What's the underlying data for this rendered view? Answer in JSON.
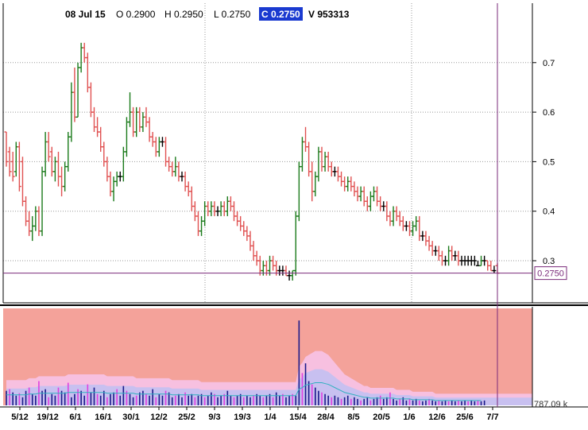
{
  "header": {
    "date": "08 Jul 15",
    "open": "O 0.2900",
    "high": "H 0.2950",
    "low": "L 0.2750",
    "close": "C 0.2750",
    "volume": "V 953313"
  },
  "price_tag": "0.2750",
  "volume_tag": "787.09 k",
  "colors": {
    "up": "#1a7a1a",
    "down": "#e05050",
    "doji": "#000000",
    "crosshair": "#7a2a7a",
    "volume_bg": "#f4a29a",
    "volume_band_outer": "#f7c0e0",
    "volume_band_inner": "#c8c0f0",
    "volume_bar_dark": "#1a1a8a",
    "volume_bar_light": "#e040e0",
    "volume_avg": "#30b0c0",
    "close_tag_bg": "#1a3ad0"
  },
  "chart_data": {
    "type": "ohlc",
    "price_axis": {
      "ticks": [
        "0.3",
        "0.4",
        "0.5",
        "0.6",
        "0.7"
      ],
      "ylim": [
        0.215,
        0.82
      ]
    },
    "date_labels": [
      "5/12",
      "19/12",
      "6/1",
      "16/1",
      "30/1",
      "12/2",
      "25/2",
      "9/3",
      "19/3",
      "1/4",
      "15/4",
      "28/4",
      "8/5",
      "20/5",
      "1/6",
      "12/6",
      "25/6",
      "7/7"
    ],
    "last_close": 0.275,
    "grid": "dotted",
    "bars": [
      [
        0.56,
        0.56,
        0.49,
        0.5
      ],
      [
        0.52,
        0.53,
        0.47,
        0.48
      ],
      [
        0.5,
        0.52,
        0.46,
        0.47
      ],
      [
        0.48,
        0.54,
        0.47,
        0.53
      ],
      [
        0.53,
        0.54,
        0.44,
        0.45
      ],
      [
        0.5,
        0.51,
        0.41,
        0.42
      ],
      [
        0.42,
        0.43,
        0.37,
        0.38
      ],
      [
        0.38,
        0.4,
        0.35,
        0.36
      ],
      [
        0.36,
        0.39,
        0.34,
        0.37
      ],
      [
        0.37,
        0.41,
        0.36,
        0.4
      ],
      [
        0.4,
        0.41,
        0.35,
        0.36
      ],
      [
        0.36,
        0.49,
        0.35,
        0.48
      ],
      [
        0.48,
        0.56,
        0.47,
        0.54
      ],
      [
        0.54,
        0.56,
        0.5,
        0.51
      ],
      [
        0.52,
        0.53,
        0.47,
        0.48
      ],
      [
        0.48,
        0.51,
        0.46,
        0.5
      ],
      [
        0.5,
        0.52,
        0.45,
        0.47
      ],
      [
        0.47,
        0.49,
        0.43,
        0.45
      ],
      [
        0.45,
        0.5,
        0.44,
        0.49
      ],
      [
        0.49,
        0.56,
        0.48,
        0.55
      ],
      [
        0.55,
        0.66,
        0.54,
        0.64
      ],
      [
        0.64,
        0.69,
        0.58,
        0.59
      ],
      [
        0.59,
        0.7,
        0.59,
        0.69
      ],
      [
        0.69,
        0.74,
        0.68,
        0.73
      ],
      [
        0.73,
        0.74,
        0.7,
        0.71
      ],
      [
        0.71,
        0.72,
        0.64,
        0.65
      ],
      [
        0.65,
        0.66,
        0.59,
        0.6
      ],
      [
        0.6,
        0.61,
        0.56,
        0.57
      ],
      [
        0.57,
        0.59,
        0.55,
        0.56
      ],
      [
        0.56,
        0.57,
        0.52,
        0.53
      ],
      [
        0.53,
        0.54,
        0.49,
        0.5
      ],
      [
        0.5,
        0.51,
        0.46,
        0.47
      ],
      [
        0.47,
        0.48,
        0.43,
        0.44
      ],
      [
        0.44,
        0.47,
        0.42,
        0.46
      ],
      [
        0.46,
        0.48,
        0.45,
        0.47
      ],
      [
        0.47,
        0.48,
        0.46,
        0.47
      ],
      [
        0.47,
        0.53,
        0.46,
        0.52
      ],
      [
        0.52,
        0.59,
        0.51,
        0.58
      ],
      [
        0.58,
        0.64,
        0.57,
        0.6
      ],
      [
        0.6,
        0.61,
        0.55,
        0.56
      ],
      [
        0.56,
        0.61,
        0.55,
        0.6
      ],
      [
        0.6,
        0.61,
        0.56,
        0.57
      ],
      [
        0.57,
        0.6,
        0.56,
        0.59
      ],
      [
        0.59,
        0.61,
        0.57,
        0.58
      ],
      [
        0.58,
        0.59,
        0.54,
        0.55
      ],
      [
        0.55,
        0.56,
        0.53,
        0.54
      ],
      [
        0.54,
        0.55,
        0.51,
        0.52
      ],
      [
        0.52,
        0.55,
        0.51,
        0.54
      ],
      [
        0.54,
        0.55,
        0.53,
        0.54
      ],
      [
        0.54,
        0.55,
        0.49,
        0.5
      ],
      [
        0.5,
        0.51,
        0.48,
        0.49
      ],
      [
        0.49,
        0.5,
        0.47,
        0.48
      ],
      [
        0.48,
        0.51,
        0.47,
        0.49
      ],
      [
        0.49,
        0.5,
        0.46,
        0.47
      ],
      [
        0.47,
        0.48,
        0.46,
        0.47
      ],
      [
        0.47,
        0.48,
        0.44,
        0.45
      ],
      [
        0.45,
        0.46,
        0.43,
        0.44
      ],
      [
        0.44,
        0.45,
        0.4,
        0.41
      ],
      [
        0.41,
        0.42,
        0.38,
        0.39
      ],
      [
        0.39,
        0.4,
        0.35,
        0.36
      ],
      [
        0.36,
        0.39,
        0.35,
        0.38
      ],
      [
        0.38,
        0.42,
        0.37,
        0.41
      ],
      [
        0.41,
        0.42,
        0.39,
        0.4
      ],
      [
        0.4,
        0.42,
        0.39,
        0.41
      ],
      [
        0.41,
        0.42,
        0.39,
        0.4
      ],
      [
        0.4,
        0.41,
        0.39,
        0.4
      ],
      [
        0.4,
        0.42,
        0.39,
        0.41
      ],
      [
        0.41,
        0.42,
        0.39,
        0.4
      ],
      [
        0.4,
        0.43,
        0.39,
        0.42
      ],
      [
        0.42,
        0.43,
        0.4,
        0.41
      ],
      [
        0.41,
        0.42,
        0.38,
        0.39
      ],
      [
        0.39,
        0.4,
        0.37,
        0.38
      ],
      [
        0.38,
        0.39,
        0.36,
        0.37
      ],
      [
        0.37,
        0.38,
        0.35,
        0.36
      ],
      [
        0.36,
        0.37,
        0.34,
        0.35
      ],
      [
        0.35,
        0.36,
        0.32,
        0.33
      ],
      [
        0.33,
        0.34,
        0.3,
        0.31
      ],
      [
        0.31,
        0.32,
        0.29,
        0.3
      ],
      [
        0.3,
        0.31,
        0.27,
        0.28
      ],
      [
        0.28,
        0.3,
        0.27,
        0.29
      ],
      [
        0.29,
        0.3,
        0.27,
        0.28
      ],
      [
        0.28,
        0.31,
        0.27,
        0.3
      ],
      [
        0.3,
        0.31,
        0.28,
        0.29
      ],
      [
        0.29,
        0.3,
        0.27,
        0.28
      ],
      [
        0.28,
        0.29,
        0.27,
        0.28
      ],
      [
        0.28,
        0.29,
        0.27,
        0.28
      ],
      [
        0.28,
        0.29,
        0.27,
        0.27
      ],
      [
        0.27,
        0.28,
        0.26,
        0.27
      ],
      [
        0.27,
        0.28,
        0.26,
        0.28
      ],
      [
        0.28,
        0.4,
        0.27,
        0.39
      ],
      [
        0.39,
        0.5,
        0.38,
        0.49
      ],
      [
        0.49,
        0.55,
        0.48,
        0.54
      ],
      [
        0.54,
        0.57,
        0.52,
        0.53
      ],
      [
        0.53,
        0.54,
        0.47,
        0.48
      ],
      [
        0.48,
        0.5,
        0.42,
        0.44
      ],
      [
        0.44,
        0.48,
        0.43,
        0.47
      ],
      [
        0.47,
        0.53,
        0.46,
        0.52
      ],
      [
        0.52,
        0.53,
        0.48,
        0.49
      ],
      [
        0.49,
        0.52,
        0.48,
        0.51
      ],
      [
        0.51,
        0.52,
        0.48,
        0.49
      ],
      [
        0.49,
        0.5,
        0.47,
        0.48
      ],
      [
        0.48,
        0.49,
        0.47,
        0.48
      ],
      [
        0.48,
        0.49,
        0.46,
        0.47
      ],
      [
        0.47,
        0.48,
        0.45,
        0.46
      ],
      [
        0.46,
        0.47,
        0.44,
        0.45
      ],
      [
        0.45,
        0.47,
        0.44,
        0.46
      ],
      [
        0.46,
        0.47,
        0.44,
        0.45
      ],
      [
        0.45,
        0.46,
        0.43,
        0.44
      ],
      [
        0.44,
        0.45,
        0.42,
        0.43
      ],
      [
        0.43,
        0.45,
        0.42,
        0.44
      ],
      [
        0.44,
        0.45,
        0.41,
        0.42
      ],
      [
        0.42,
        0.43,
        0.4,
        0.41
      ],
      [
        0.41,
        0.44,
        0.4,
        0.43
      ],
      [
        0.43,
        0.45,
        0.42,
        0.44
      ],
      [
        0.44,
        0.45,
        0.41,
        0.42
      ],
      [
        0.42,
        0.43,
        0.4,
        0.41
      ],
      [
        0.41,
        0.42,
        0.4,
        0.41
      ],
      [
        0.41,
        0.42,
        0.38,
        0.39
      ],
      [
        0.39,
        0.4,
        0.37,
        0.38
      ],
      [
        0.38,
        0.41,
        0.37,
        0.4
      ],
      [
        0.4,
        0.41,
        0.38,
        0.39
      ],
      [
        0.39,
        0.4,
        0.37,
        0.38
      ],
      [
        0.38,
        0.39,
        0.36,
        0.37
      ],
      [
        0.37,
        0.38,
        0.36,
        0.37
      ],
      [
        0.37,
        0.38,
        0.35,
        0.36
      ],
      [
        0.36,
        0.38,
        0.35,
        0.37
      ],
      [
        0.37,
        0.39,
        0.36,
        0.38
      ],
      [
        0.38,
        0.39,
        0.34,
        0.35
      ],
      [
        0.35,
        0.36,
        0.34,
        0.35
      ],
      [
        0.35,
        0.36,
        0.33,
        0.34
      ],
      [
        0.34,
        0.35,
        0.32,
        0.33
      ],
      [
        0.33,
        0.34,
        0.31,
        0.32
      ],
      [
        0.32,
        0.33,
        0.31,
        0.32
      ],
      [
        0.32,
        0.33,
        0.3,
        0.31
      ],
      [
        0.31,
        0.32,
        0.29,
        0.3
      ],
      [
        0.3,
        0.31,
        0.29,
        0.3
      ],
      [
        0.3,
        0.33,
        0.29,
        0.32
      ],
      [
        0.32,
        0.33,
        0.3,
        0.31
      ],
      [
        0.31,
        0.32,
        0.3,
        0.31
      ],
      [
        0.31,
        0.32,
        0.29,
        0.3
      ],
      [
        0.3,
        0.31,
        0.29,
        0.3
      ],
      [
        0.3,
        0.31,
        0.29,
        0.3
      ],
      [
        0.3,
        0.31,
        0.29,
        0.3
      ],
      [
        0.3,
        0.31,
        0.29,
        0.3
      ],
      [
        0.3,
        0.31,
        0.29,
        0.3
      ],
      [
        0.29,
        0.3,
        0.29,
        0.29
      ],
      [
        0.29,
        0.31,
        0.29,
        0.3
      ],
      [
        0.3,
        0.31,
        0.29,
        0.3
      ],
      [
        0.3,
        0.3,
        0.28,
        0.29
      ],
      [
        0.29,
        0.3,
        0.28,
        0.28
      ],
      [
        0.28,
        0.29,
        0.275,
        0.28
      ],
      [
        0.29,
        0.295,
        0.275,
        0.275
      ]
    ],
    "volume": {
      "scale_max": 1.2,
      "bars": [
        0.18,
        0.2,
        0.16,
        0.12,
        0.15,
        0.1,
        0.18,
        0.22,
        0.14,
        0.12,
        0.3,
        0.18,
        0.2,
        0.1,
        0.14,
        0.12,
        0.22,
        0.18,
        0.16,
        0.28,
        0.1,
        0.14,
        0.2,
        0.18,
        0.12,
        0.26,
        0.16,
        0.22,
        0.14,
        0.12,
        0.18,
        0.1,
        0.14,
        0.16,
        0.2,
        0.12,
        0.24,
        0.18,
        0.14,
        0.1,
        0.12,
        0.16,
        0.18,
        0.14,
        0.12,
        0.2,
        0.1,
        0.14,
        0.12,
        0.18,
        0.16,
        0.1,
        0.12,
        0.14,
        0.1,
        0.16,
        0.12,
        0.14,
        0.1,
        0.12,
        0.14,
        0.1,
        0.12,
        0.16,
        0.14,
        0.1,
        0.12,
        0.14,
        0.18,
        0.12,
        0.1,
        0.12,
        0.14,
        0.1,
        0.12,
        0.1,
        0.12,
        0.14,
        0.12,
        0.1,
        0.12,
        0.14,
        0.1,
        0.16,
        0.12,
        0.14,
        0.1,
        0.12,
        0.14,
        0.12,
        1.05,
        0.4,
        0.52,
        0.3,
        0.26,
        0.22,
        0.18,
        0.16,
        0.14,
        0.12,
        0.1,
        0.12,
        0.1,
        0.08,
        0.1,
        0.12,
        0.08,
        0.1,
        0.08,
        0.06,
        0.08,
        0.1,
        0.06,
        0.08,
        0.1,
        0.12,
        0.08,
        0.1,
        0.16,
        0.08,
        0.06,
        0.08,
        0.1,
        0.06,
        0.08,
        0.06,
        0.08,
        0.06,
        0.05,
        0.06,
        0.08,
        0.06,
        0.05,
        0.06,
        0.05,
        0.06,
        0.05,
        0.06,
        0.05,
        0.06,
        0.05,
        0.06,
        0.05,
        0.06,
        0.05,
        0.06,
        0.05,
        0.06
      ],
      "average": [
        0.13,
        0.13,
        0.13,
        0.13,
        0.13,
        0.13,
        0.13,
        0.14,
        0.14,
        0.14,
        0.15,
        0.15,
        0.15,
        0.15,
        0.15,
        0.15,
        0.15,
        0.15,
        0.15,
        0.16,
        0.16,
        0.16,
        0.16,
        0.16,
        0.16,
        0.16,
        0.16,
        0.16,
        0.16,
        0.16,
        0.16,
        0.15,
        0.15,
        0.15,
        0.15,
        0.15,
        0.15,
        0.15,
        0.15,
        0.15,
        0.14,
        0.14,
        0.14,
        0.14,
        0.14,
        0.14,
        0.14,
        0.14,
        0.14,
        0.14,
        0.14,
        0.13,
        0.13,
        0.13,
        0.13,
        0.13,
        0.13,
        0.13,
        0.13,
        0.13,
        0.12,
        0.12,
        0.12,
        0.12,
        0.12,
        0.12,
        0.12,
        0.12,
        0.12,
        0.12,
        0.12,
        0.12,
        0.12,
        0.12,
        0.12,
        0.12,
        0.12,
        0.12,
        0.12,
        0.12,
        0.12,
        0.12,
        0.12,
        0.12,
        0.12,
        0.12,
        0.12,
        0.12,
        0.12,
        0.12,
        0.2,
        0.22,
        0.25,
        0.26,
        0.27,
        0.28,
        0.28,
        0.28,
        0.27,
        0.26,
        0.24,
        0.22,
        0.2,
        0.18,
        0.16,
        0.15,
        0.14,
        0.13,
        0.12,
        0.11,
        0.1,
        0.1,
        0.09,
        0.09,
        0.09,
        0.09,
        0.09,
        0.09,
        0.09,
        0.09,
        0.08,
        0.08,
        0.08,
        0.08,
        0.08,
        0.07,
        0.07,
        0.07,
        0.07,
        0.07,
        0.07,
        0.07,
        0.06,
        0.06,
        0.06,
        0.06,
        0.06,
        0.06,
        0.06,
        0.06,
        0.06,
        0.06,
        0.06,
        0.06,
        0.06,
        0.06,
        0.06
      ]
    }
  }
}
